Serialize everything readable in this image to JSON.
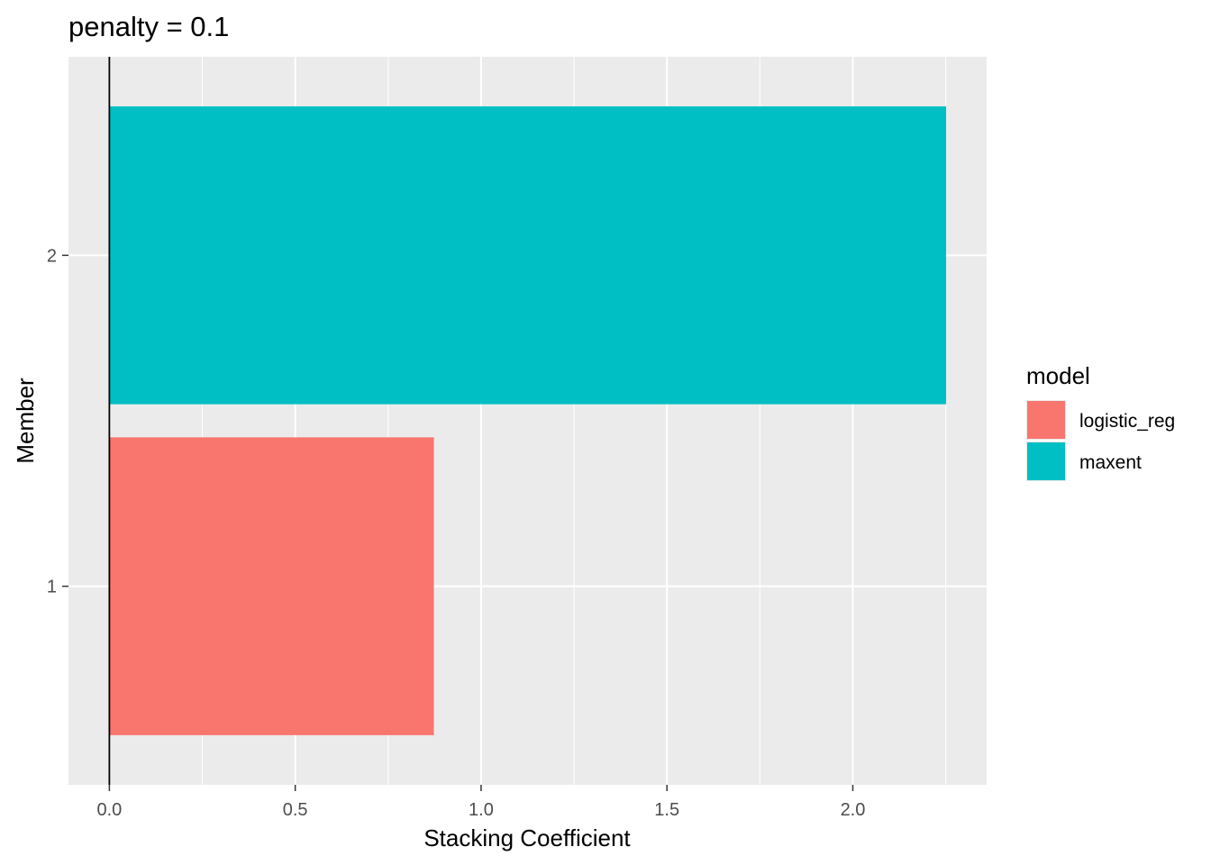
{
  "chart_data": {
    "type": "bar",
    "orientation": "horizontal",
    "title": "penalty = 0.1",
    "xlabel": "Stacking Coefficient",
    "ylabel": "Member",
    "categories": [
      "1",
      "2"
    ],
    "xlim": [
      -0.11,
      2.36
    ],
    "x_ticks": [
      "0.0",
      "0.5",
      "1.0",
      "1.5",
      "2.0"
    ],
    "x_tick_values": [
      0,
      0.5,
      1.0,
      1.5,
      2.0
    ],
    "bars": [
      {
        "member": "1",
        "model": "logistic_reg",
        "value": 0.873
      },
      {
        "member": "2",
        "model": "maxent",
        "value": 2.251
      }
    ],
    "legend": {
      "title": "model",
      "position": "right",
      "entries": [
        {
          "label": "logistic_reg",
          "color": "#F8766D"
        },
        {
          "label": "maxent",
          "color": "#00BFC4"
        }
      ]
    },
    "grid": true,
    "zero_line": true,
    "colors": {
      "panel_background": "#EBEBEB",
      "grid": "#FFFFFF",
      "logistic_reg": "#F8766D",
      "maxent": "#00BFC4"
    }
  }
}
